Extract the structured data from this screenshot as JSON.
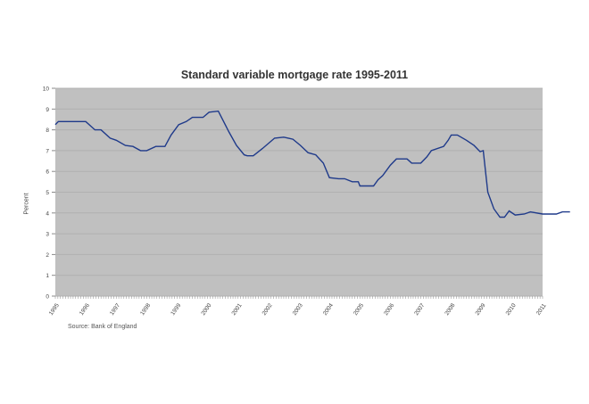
{
  "chart_data": {
    "type": "line",
    "title": "Standard variable mortgage rate 1995-2011",
    "xlabel": "",
    "ylabel": "Percent",
    "ylim": [
      0,
      10
    ],
    "xlim": [
      1995,
      2011
    ],
    "yticks": [
      0,
      1,
      2,
      3,
      4,
      5,
      6,
      7,
      8,
      9,
      10
    ],
    "xticks": [
      "1995",
      "1996",
      "1997",
      "1998",
      "1999",
      "2000",
      "2001",
      "2002",
      "2003",
      "2004",
      "2005",
      "2006",
      "2007",
      "2008",
      "2009",
      "2010",
      "2011"
    ],
    "grid": true,
    "legend": null,
    "series": [
      {
        "name": "Standard variable mortgage rate",
        "color": "#1f3a8a",
        "x": [
          1995.0,
          1995.1,
          1995.6,
          1996.0,
          1996.3,
          1996.5,
          1996.8,
          1997.0,
          1997.3,
          1997.55,
          1997.8,
          1998.0,
          1998.3,
          1998.6,
          1998.8,
          1999.05,
          1999.3,
          1999.5,
          1999.85,
          2000.05,
          2000.35,
          2000.7,
          2000.95,
          2001.2,
          2001.3,
          2001.5,
          2001.8,
          2002.2,
          2002.5,
          2002.65,
          2002.8,
          2003.05,
          2003.3,
          2003.55,
          2003.8,
          2004.0,
          2004.3,
          2004.5,
          2004.75,
          2004.95,
          2005.0,
          2005.45,
          2005.6,
          2005.75,
          2006.0,
          2006.2,
          2006.35,
          2006.55,
          2006.7,
          2006.9,
          2007.0,
          2007.2,
          2007.35,
          2007.75,
          2007.9,
          2008.0,
          2008.2,
          2008.5,
          2008.75,
          2008.95,
          2009.05,
          2009.2,
          2009.4,
          2009.6,
          2009.75,
          2009.9,
          2010.1,
          2010.4,
          2010.6,
          2011.0,
          2011.45,
          2011.65,
          2011.9
        ],
        "values": [
          8.25,
          8.4,
          8.4,
          8.4,
          8.0,
          8.0,
          7.6,
          7.5,
          7.25,
          7.2,
          7.0,
          7.0,
          7.2,
          7.2,
          7.75,
          8.25,
          8.4,
          8.6,
          8.6,
          8.85,
          8.9,
          7.9,
          7.25,
          6.8,
          6.75,
          6.75,
          7.1,
          7.6,
          7.65,
          7.6,
          7.55,
          7.25,
          6.9,
          6.8,
          6.4,
          5.7,
          5.65,
          5.65,
          5.5,
          5.5,
          5.3,
          5.3,
          5.6,
          5.8,
          6.3,
          6.6,
          6.6,
          6.6,
          6.4,
          6.4,
          6.4,
          6.7,
          7.0,
          7.2,
          7.5,
          7.75,
          7.75,
          7.5,
          7.25,
          6.95,
          7.0,
          5.0,
          4.2,
          3.8,
          3.8,
          4.1,
          3.9,
          3.95,
          4.05,
          3.95,
          3.95,
          4.05,
          4.05
        ]
      }
    ]
  },
  "source_note": "Source: Bank of England",
  "colors": {
    "plot_background": "#c0c0c0",
    "gridline": "#b0b0b0",
    "line": "#1f3a8a"
  }
}
